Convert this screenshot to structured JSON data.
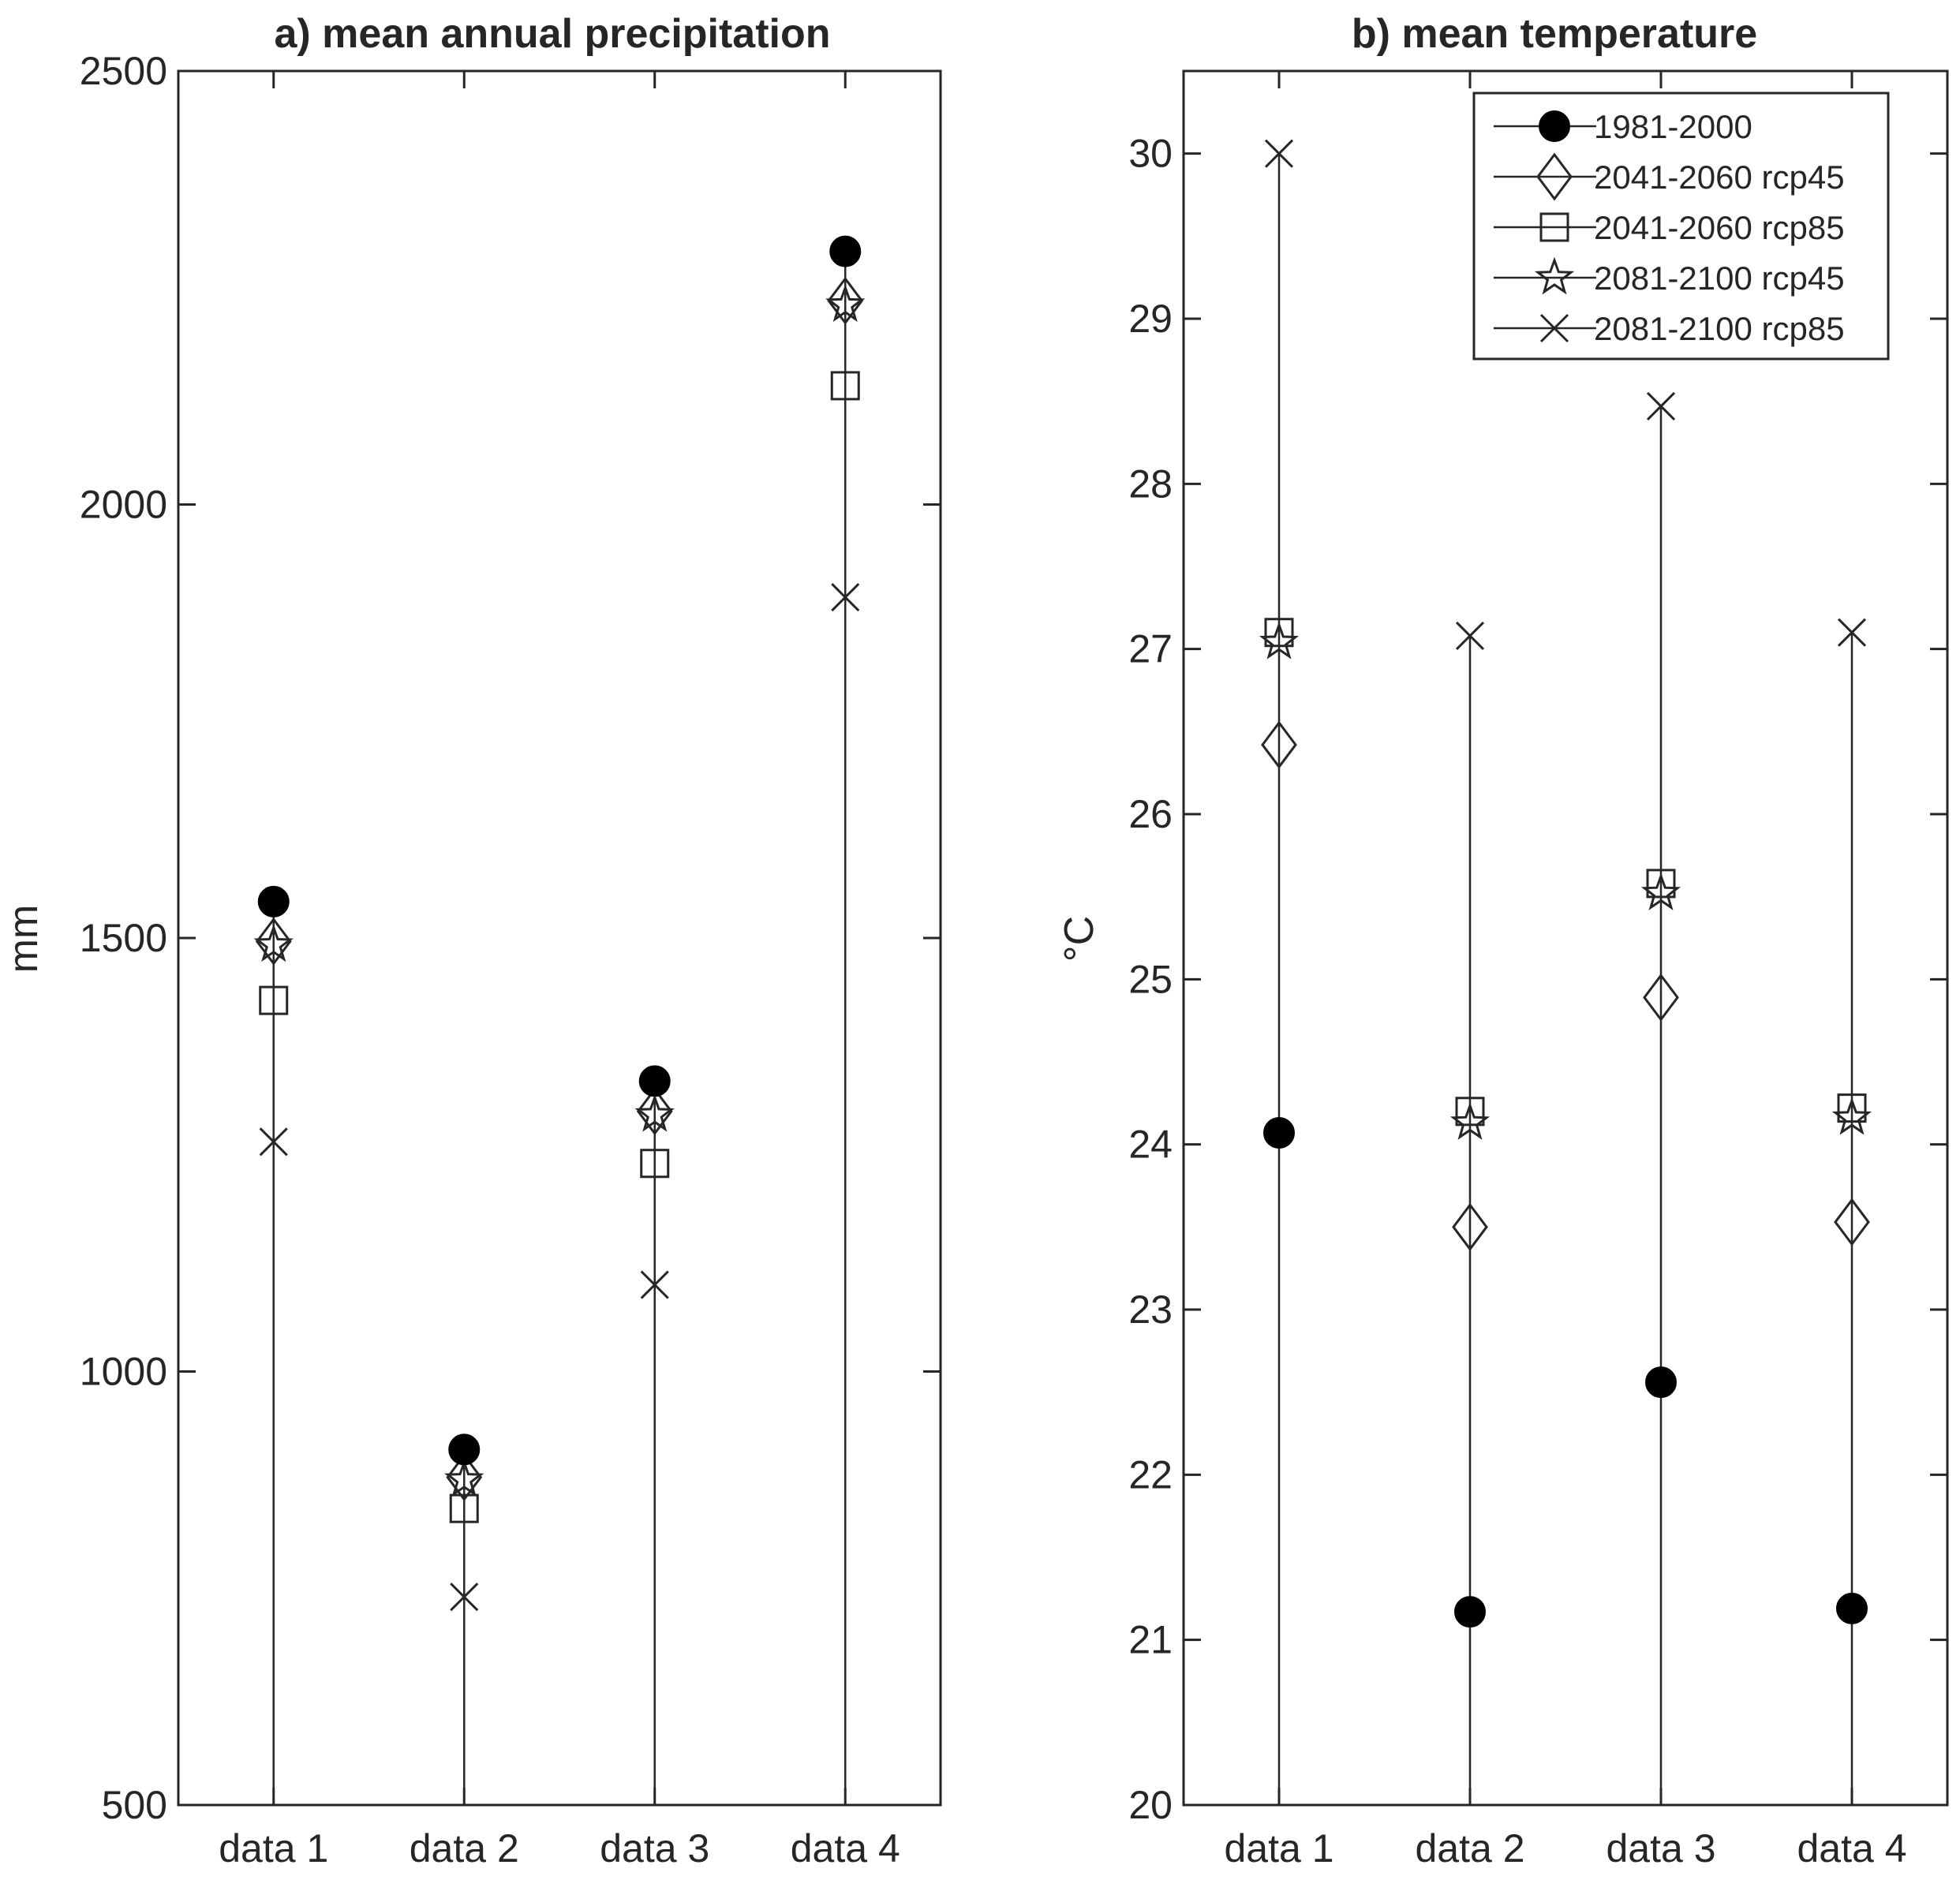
{
  "chart_data": [
    {
      "type": "stem",
      "title": "a) mean annual precipitation",
      "xlabel": "",
      "ylabel": "mm",
      "categories": [
        "data 1",
        "data 2",
        "data 3",
        "data 4"
      ],
      "ylim": [
        500,
        2500
      ],
      "yticks": [
        500,
        1000,
        1500,
        2000,
        2500
      ],
      "series": [
        {
          "name": "1981-2000",
          "marker": "filled-circle",
          "values": [
            1542,
            910,
            1335,
            2292
          ]
        },
        {
          "name": "2041-2060 rcp45",
          "marker": "diamond",
          "values": [
            1496,
            878,
            1300,
            2235
          ]
        },
        {
          "name": "2041-2060 rcp85",
          "marker": "square",
          "values": [
            1428,
            842,
            1240,
            2137
          ]
        },
        {
          "name": "2081-2100 rcp45",
          "marker": "star",
          "values": [
            1492,
            875,
            1296,
            2230
          ]
        },
        {
          "name": "2081-2100 rcp85",
          "marker": "x",
          "values": [
            1265,
            740,
            1100,
            1893
          ]
        }
      ],
      "grid": false,
      "legend": false
    },
    {
      "type": "stem",
      "title": "b) mean temperature",
      "xlabel": "",
      "ylabel": "°C",
      "categories": [
        "data 1",
        "data 2",
        "data 3",
        "data 4"
      ],
      "ylim": [
        20,
        30.5
      ],
      "yticks": [
        20,
        21,
        22,
        23,
        24,
        25,
        26,
        27,
        28,
        29,
        30
      ],
      "series": [
        {
          "name": "1981-2000",
          "marker": "filled-circle",
          "values": [
            24.07,
            21.17,
            22.56,
            21.19
          ]
        },
        {
          "name": "2041-2060 rcp45",
          "marker": "diamond",
          "values": [
            26.42,
            23.5,
            24.89,
            23.53
          ]
        },
        {
          "name": "2041-2060 rcp85",
          "marker": "square",
          "values": [
            27.1,
            24.2,
            25.58,
            24.22
          ]
        },
        {
          "name": "2081-2100 rcp45",
          "marker": "star",
          "values": [
            27.04,
            24.13,
            25.52,
            24.16
          ]
        },
        {
          "name": "2081-2100 rcp85",
          "marker": "x",
          "values": [
            30.0,
            27.08,
            28.47,
            27.1
          ]
        }
      ],
      "grid": false,
      "legend": "top-right"
    }
  ]
}
